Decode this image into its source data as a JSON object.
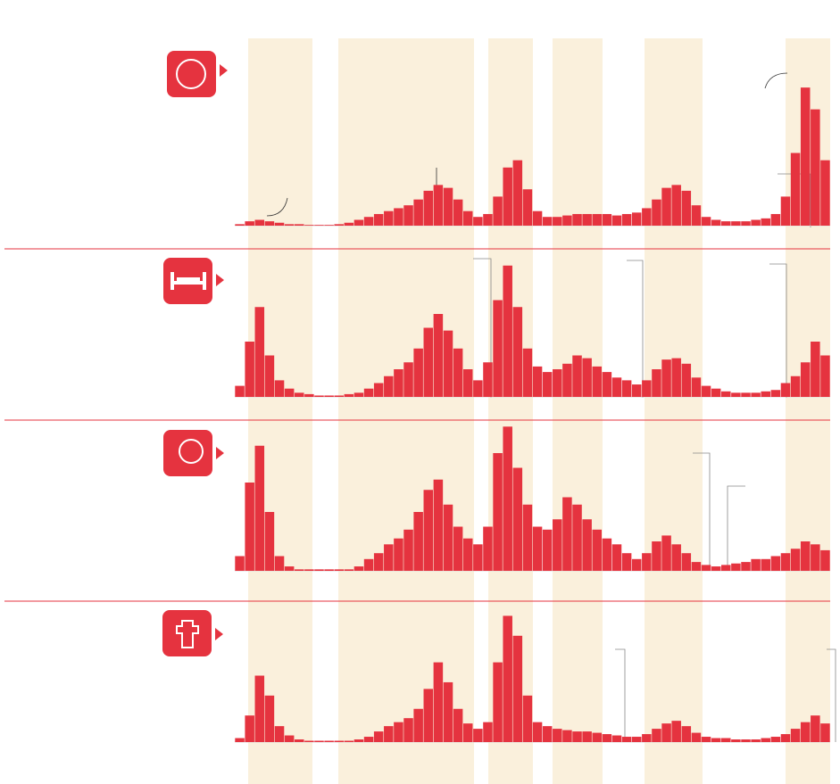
{
  "chart_data": [
    {
      "type": "bar",
      "color": "#e5333f",
      "ylim": [
        0,
        100
      ],
      "values": [
        1,
        3,
        4,
        3,
        2,
        1,
        1,
        0.5,
        0.5,
        0.5,
        1,
        2,
        4,
        6,
        8,
        10,
        12,
        14,
        18,
        24,
        28,
        26,
        18,
        10,
        6,
        8,
        20,
        40,
        45,
        25,
        10,
        6,
        6,
        7,
        8,
        8,
        8,
        8,
        7,
        8,
        9,
        12,
        18,
        26,
        28,
        24,
        14,
        6,
        4,
        3,
        3,
        3,
        4,
        5,
        8,
        20,
        50,
        95,
        80,
        45
      ]
    },
    {
      "type": "bar",
      "color": "#e5333f",
      "ylim": [
        0,
        100
      ],
      "values": [
        8,
        40,
        65,
        30,
        12,
        6,
        3,
        2,
        1,
        1,
        1,
        2,
        3,
        6,
        10,
        15,
        20,
        25,
        35,
        50,
        60,
        48,
        35,
        20,
        12,
        25,
        70,
        95,
        65,
        35,
        22,
        18,
        20,
        24,
        30,
        28,
        22,
        18,
        14,
        12,
        9,
        12,
        20,
        27,
        28,
        24,
        14,
        8,
        6,
        4,
        3,
        3,
        3,
        4,
        5,
        10,
        15,
        25,
        40,
        30
      ]
    },
    {
      "type": "bar",
      "color": "#e5333f",
      "ylim": [
        0,
        100
      ],
      "values": [
        10,
        60,
        85,
        40,
        10,
        3,
        1,
        1,
        1,
        1,
        1,
        1,
        3,
        8,
        12,
        18,
        22,
        28,
        40,
        55,
        62,
        45,
        30,
        22,
        18,
        30,
        80,
        98,
        70,
        45,
        30,
        28,
        35,
        50,
        45,
        35,
        28,
        22,
        18,
        12,
        8,
        12,
        20,
        24,
        18,
        12,
        6,
        4,
        3,
        4,
        5,
        6,
        8,
        8,
        10,
        12,
        15,
        20,
        18,
        14
      ]
    },
    {
      "type": "bar",
      "color": "#e5333f",
      "ylim": [
        0,
        100
      ],
      "values": [
        3,
        20,
        50,
        35,
        12,
        5,
        2,
        1,
        1,
        1,
        1,
        1,
        2,
        4,
        8,
        12,
        15,
        18,
        25,
        40,
        60,
        45,
        25,
        14,
        10,
        15,
        60,
        95,
        80,
        35,
        15,
        12,
        10,
        9,
        8,
        8,
        7,
        6,
        5,
        4,
        4,
        6,
        10,
        14,
        16,
        12,
        7,
        4,
        3,
        3,
        2,
        2,
        2,
        3,
        4,
        6,
        10,
        15,
        20,
        14
      ]
    }
  ]
}
